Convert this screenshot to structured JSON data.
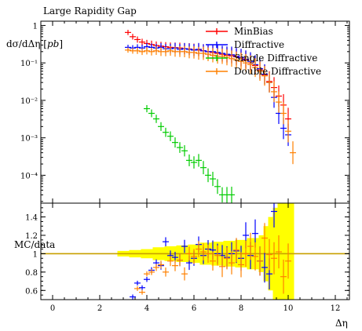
{
  "chart_data": [
    {
      "type": "scatter",
      "title": "Large Rapidity Gap",
      "xlabel": "Δη",
      "ylabel": "dσ/dΔη [pb]",
      "yscale": "log",
      "xlim": [
        -0.5,
        12.6
      ],
      "ylim": [
        1.8e-05,
        1.3
      ],
      "legend_position": "top-right",
      "series": [
        {
          "name": "MinBias",
          "color": "#ff0000",
          "x": [
            3.2,
            3.4,
            3.6,
            3.8,
            4.0,
            4.2,
            4.4,
            4.6,
            4.8,
            5.0,
            5.2,
            5.4,
            5.6,
            5.8,
            6.0,
            6.2,
            6.4,
            6.6,
            6.8,
            7.0,
            7.2,
            7.4,
            7.6,
            7.8,
            8.0,
            8.2,
            8.4,
            8.6,
            8.8,
            9.0,
            9.2,
            9.4,
            9.6,
            9.8,
            10.0
          ],
          "y": [
            0.65,
            0.5,
            0.42,
            0.36,
            0.33,
            0.31,
            0.29,
            0.28,
            0.27,
            0.26,
            0.255,
            0.25,
            0.24,
            0.235,
            0.225,
            0.22,
            0.21,
            0.2,
            0.19,
            0.18,
            0.17,
            0.16,
            0.155,
            0.145,
            0.135,
            0.12,
            0.1,
            0.085,
            0.065,
            0.048,
            0.032,
            0.022,
            0.013,
            0.0075,
            0.0032
          ]
        },
        {
          "name": "Diffractive",
          "color": "#0000ff",
          "x": [
            3.2,
            3.4,
            3.6,
            3.8,
            4.0,
            4.2,
            4.4,
            4.6,
            4.8,
            5.0,
            5.2,
            5.4,
            5.6,
            5.8,
            6.0,
            6.2,
            6.4,
            6.6,
            6.8,
            7.0,
            7.2,
            7.4,
            7.6,
            7.8,
            8.0,
            8.2,
            8.4,
            8.6,
            8.8,
            9.0,
            9.2,
            9.4,
            9.6,
            9.8,
            10.0
          ],
          "y": [
            0.26,
            0.25,
            0.26,
            0.25,
            0.27,
            0.26,
            0.25,
            0.26,
            0.24,
            0.24,
            0.25,
            0.23,
            0.24,
            0.23,
            0.22,
            0.23,
            0.21,
            0.2,
            0.2,
            0.19,
            0.18,
            0.17,
            0.165,
            0.15,
            0.14,
            0.125,
            0.11,
            0.09,
            0.07,
            0.05,
            0.03,
            0.012,
            0.0045,
            0.0018,
            0.0012
          ]
        },
        {
          "name": "Single Diffractive",
          "color": "#00cc00",
          "x": [
            4.0,
            4.2,
            4.4,
            4.6,
            4.8,
            5.0,
            5.2,
            5.4,
            5.6,
            5.8,
            6.0,
            6.2,
            6.4,
            6.6,
            6.8,
            7.0,
            7.2,
            7.4,
            7.6
          ],
          "y": [
            0.006,
            0.0045,
            0.0032,
            0.002,
            0.0014,
            0.0011,
            0.00075,
            0.00055,
            0.00045,
            0.00025,
            0.00022,
            0.00025,
            0.00016,
            0.0001,
            8e-05,
            5e-05,
            3e-05,
            3e-05,
            3e-05
          ]
        },
        {
          "name": "Double Diffractive",
          "color": "#ff8000",
          "x": [
            3.2,
            3.4,
            3.6,
            3.8,
            4.0,
            4.2,
            4.4,
            4.6,
            4.8,
            5.0,
            5.2,
            5.4,
            5.6,
            5.8,
            6.0,
            6.2,
            6.4,
            6.6,
            6.8,
            7.0,
            7.2,
            7.4,
            7.6,
            7.8,
            8.0,
            8.2,
            8.4,
            8.6,
            8.8,
            9.0,
            9.2,
            9.4,
            9.6,
            9.8,
            10.0,
            10.2
          ],
          "y": [
            0.22,
            0.21,
            0.21,
            0.2,
            0.21,
            0.2,
            0.21,
            0.2,
            0.2,
            0.21,
            0.2,
            0.2,
            0.2,
            0.19,
            0.19,
            0.18,
            0.18,
            0.17,
            0.16,
            0.15,
            0.15,
            0.14,
            0.13,
            0.12,
            0.11,
            0.1,
            0.09,
            0.075,
            0.06,
            0.045,
            0.03,
            0.017,
            0.009,
            0.0045,
            0.0015,
            0.0004
          ]
        }
      ]
    },
    {
      "type": "scatter",
      "xlabel": "Δη",
      "ylabel": "MC/data",
      "xlim": [
        -0.5,
        12.6
      ],
      "ylim": [
        0.5,
        1.55
      ],
      "reference_line": 1.0,
      "reference_color": "#c8a000",
      "band_color": "#ffff00",
      "band": {
        "x": [
          3.0,
          3.5,
          4.0,
          4.5,
          5.0,
          5.5,
          6.0,
          6.5,
          7.0,
          7.5,
          8.0,
          8.5,
          9.0,
          9.2,
          9.4,
          9.6,
          9.8,
          10.0
        ],
        "lo": [
          0.97,
          0.96,
          0.95,
          0.93,
          0.92,
          0.91,
          0.9,
          0.88,
          0.87,
          0.86,
          0.85,
          0.83,
          0.8,
          0.7,
          0.6,
          0.5,
          0.5,
          0.5
        ],
        "hi": [
          1.03,
          1.04,
          1.05,
          1.07,
          1.08,
          1.09,
          1.1,
          1.12,
          1.13,
          1.14,
          1.15,
          1.17,
          1.2,
          1.3,
          1.4,
          1.5,
          1.55,
          1.55
        ]
      },
      "series": [
        {
          "name": "Diffractive",
          "color": "#0000ff",
          "x": [
            3.4,
            3.6,
            3.8,
            4.0,
            4.2,
            4.4,
            4.6,
            4.8,
            5.0,
            5.2,
            5.4,
            5.6,
            5.8,
            6.0,
            6.2,
            6.4,
            6.6,
            6.8,
            7.0,
            7.2,
            7.4,
            7.6,
            7.8,
            8.0,
            8.2,
            8.4,
            8.6,
            8.8,
            9.0,
            9.2,
            9.4
          ],
          "y": [
            0.53,
            0.68,
            0.63,
            0.72,
            0.82,
            0.9,
            0.87,
            1.13,
            0.98,
            0.96,
            0.93,
            1.08,
            0.9,
            0.95,
            1.1,
            0.98,
            1.05,
            1.04,
            1.0,
            0.98,
            0.96,
            1.0,
            1.03,
            0.95,
            1.2,
            0.98,
            1.22,
            0.92,
            0.85,
            0.78,
            1.46
          ]
        },
        {
          "name": "Double Diffractive",
          "color": "#ff8000",
          "x": [
            3.6,
            3.8,
            4.0,
            4.2,
            4.4,
            4.6,
            4.8,
            5.0,
            5.2,
            5.4,
            5.6,
            5.8,
            6.0,
            6.2,
            6.4,
            6.6,
            6.8,
            7.0,
            7.2,
            7.4,
            7.6,
            7.8,
            8.0,
            8.2,
            8.4,
            8.6,
            8.8,
            9.0,
            9.2,
            9.4,
            9.6,
            9.8,
            10.0
          ],
          "y": [
            0.62,
            0.58,
            0.78,
            0.8,
            0.85,
            0.88,
            0.8,
            0.92,
            0.87,
            0.93,
            0.78,
            1.0,
            0.97,
            1.05,
            1.02,
            1.0,
            0.92,
            0.98,
            0.86,
            0.95,
            0.9,
            1.04,
            0.88,
            1.0,
            1.08,
            0.97,
            0.92,
            1.17,
            0.99,
            0.95,
            1.02,
            0.75,
            0.92
          ]
        }
      ]
    }
  ],
  "ticks": {
    "x": [
      "0",
      "2",
      "4",
      "6",
      "8",
      "10",
      "12"
    ],
    "y_main": [
      "1",
      "10⁻¹",
      "10⁻²",
      "10⁻³",
      "10⁻⁴"
    ],
    "y_ratio": [
      "1.4",
      "1.2",
      "1",
      "0.8",
      "0.6"
    ]
  },
  "legend": [
    "MinBias",
    "Diffractive",
    "Single Diffractive",
    "Double Diffractive"
  ],
  "labels": {
    "title": "Large Rapidity Gap",
    "ylabel_main": "dσ/dΔη [pb]",
    "ylabel_ratio": "MC/data",
    "xlabel": "Δη"
  }
}
